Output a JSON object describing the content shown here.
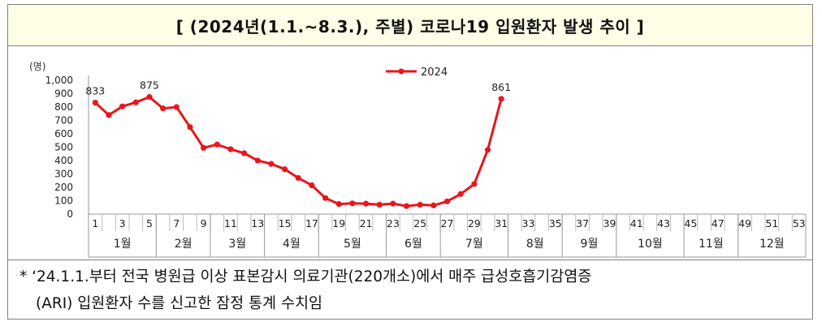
{
  "title": "[ (2024년(1.1.~8.3.), 주별) 코로나19 입원환자 발생 추이 ]",
  "note": {
    "line1": "* ‘24.1.1.부터 전국 병원급 이상 표본감시 의료기관(220개소)에서 매주 급성호흡기감염증",
    "line2": "(ARI) 입원환자 수를 신고한 잠정 통계 수치임"
  },
  "chart_data": {
    "type": "line",
    "ylabel": "(명)",
    "ylim": [
      0,
      1000
    ],
    "yticks": [
      "0",
      "100",
      "200",
      "300",
      "400",
      "500",
      "600",
      "700",
      "800",
      "900",
      "1,000"
    ],
    "xlim": [
      1,
      53
    ],
    "xticks": [
      "1",
      "3",
      "5",
      "7",
      "9",
      "11",
      "13",
      "15",
      "17",
      "19",
      "21",
      "23",
      "25",
      "27",
      "29",
      "31",
      "33",
      "35",
      "37",
      "39",
      "41",
      "43",
      "45",
      "47",
      "49",
      "51",
      "53"
    ],
    "months": [
      "1월",
      "2월",
      "3월",
      "4월",
      "5월",
      "6월",
      "7월",
      "8월",
      "9월",
      "10월",
      "11월",
      "12월"
    ],
    "month_bounds": [
      0.5,
      5.5,
      9.5,
      13.5,
      17.5,
      22.5,
      26.5,
      31.5,
      35.5,
      39.5,
      44.5,
      48.5,
      53.5
    ],
    "grid": true,
    "legend_position": "top-center",
    "series": [
      {
        "name": "2024",
        "color": "#e8161c",
        "x": [
          1,
          2,
          3,
          4,
          5,
          6,
          7,
          8,
          9,
          10,
          11,
          12,
          13,
          14,
          15,
          16,
          17,
          18,
          19,
          20,
          21,
          22,
          23,
          24,
          25,
          26,
          27,
          28,
          29,
          30,
          31
        ],
        "values": [
          833,
          740,
          805,
          835,
          875,
          790,
          800,
          650,
          495,
          520,
          485,
          455,
          400,
          375,
          335,
          270,
          215,
          120,
          75,
          80,
          78,
          70,
          78,
          60,
          70,
          65,
          95,
          150,
          225,
          480,
          861
        ],
        "labels": {
          "1": "833",
          "5": "875",
          "31": "861"
        }
      }
    ]
  }
}
